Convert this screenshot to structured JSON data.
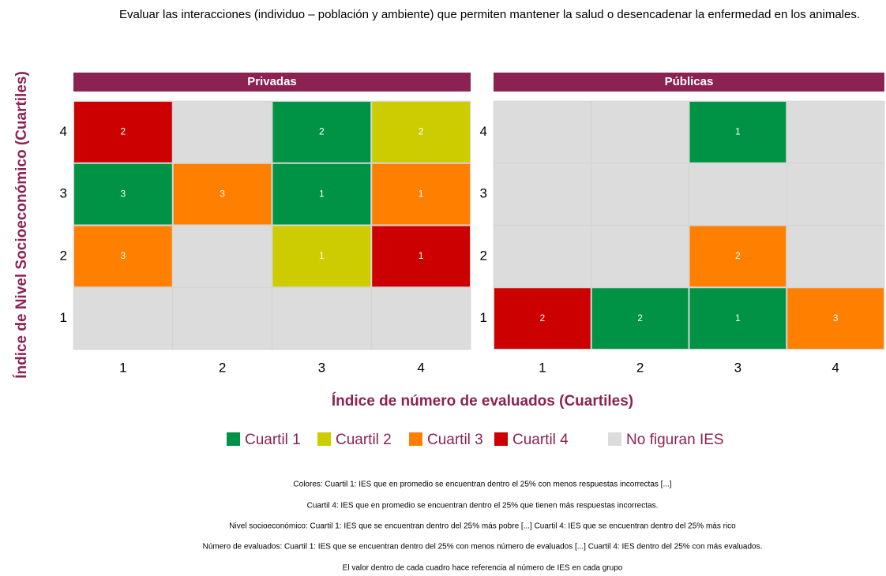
{
  "chart_data": {
    "type": "heatmap",
    "title": "Evaluar las interacciones (individuo – población y ambiente) que permiten mantener la salud o desencadenar la enfermedad en los animales.",
    "xlabel": "Índice de número de evaluados (Cuartiles)",
    "ylabel": "Índice de Nivel Socioeconómico (Cuartiles)",
    "x_categories": [
      1,
      2,
      3,
      4
    ],
    "y_categories": [
      1,
      2,
      3,
      4
    ],
    "legend": [
      {
        "name": "Cuartil 1",
        "color": "#009245"
      },
      {
        "name": "Cuartil 2",
        "color": "#cccc00"
      },
      {
        "name": "Cuartil 3",
        "color": "#ff8000"
      },
      {
        "name": "Cuartil 4",
        "color": "#cc0000"
      },
      {
        "name": "No figuran IES",
        "color": "#dcdcdc"
      }
    ],
    "facets": [
      {
        "title": "Privadas",
        "cells": [
          {
            "x": 1,
            "y": 4,
            "group": "Cuartil 4",
            "value": 2
          },
          {
            "x": 3,
            "y": 4,
            "group": "Cuartil 1",
            "value": 2
          },
          {
            "x": 4,
            "y": 4,
            "group": "Cuartil 2",
            "value": 2
          },
          {
            "x": 1,
            "y": 3,
            "group": "Cuartil 1",
            "value": 3
          },
          {
            "x": 2,
            "y": 3,
            "group": "Cuartil 3",
            "value": 3
          },
          {
            "x": 3,
            "y": 3,
            "group": "Cuartil 1",
            "value": 1
          },
          {
            "x": 4,
            "y": 3,
            "group": "Cuartil 3",
            "value": 1
          },
          {
            "x": 1,
            "y": 2,
            "group": "Cuartil 3",
            "value": 3
          },
          {
            "x": 3,
            "y": 2,
            "group": "Cuartil 2",
            "value": 1
          },
          {
            "x": 4,
            "y": 2,
            "group": "Cuartil 4",
            "value": 1
          }
        ]
      },
      {
        "title": "Públicas",
        "cells": [
          {
            "x": 3,
            "y": 4,
            "group": "Cuartil 1",
            "value": 1
          },
          {
            "x": 3,
            "y": 2,
            "group": "Cuartil 3",
            "value": 2
          },
          {
            "x": 1,
            "y": 1,
            "group": "Cuartil 4",
            "value": 2
          },
          {
            "x": 2,
            "y": 1,
            "group": "Cuartil 1",
            "value": 2
          },
          {
            "x": 3,
            "y": 1,
            "group": "Cuartil 1",
            "value": 1
          },
          {
            "x": 4,
            "y": 1,
            "group": "Cuartil 3",
            "value": 3
          }
        ]
      }
    ],
    "notes": [
      "Colores: Cuartil 1:  IES que en promedio se encuentran dentro el 25% con menos respuestas incorrectas [...]",
      "Cuartil 4: IES que en promedio se encuentran dentro el 25% que tienen más respuestas incorrectas.",
      "Nivel socioeconómico: Cuartil 1: IES que se encuentran dentro del 25% más pobre [...] Cuartil 4: IES que se encuentran dentro del 25% más rico",
      "Número de evaluados: Cuartil 1: IES que se encuentran dentro del 25% con menos número de evaluados [...] Cuartil 4: IES dentro del 25% con más evaluados.",
      "El valor dentro de cada cuadro hace referencia al número de IES en cada grupo"
    ]
  }
}
